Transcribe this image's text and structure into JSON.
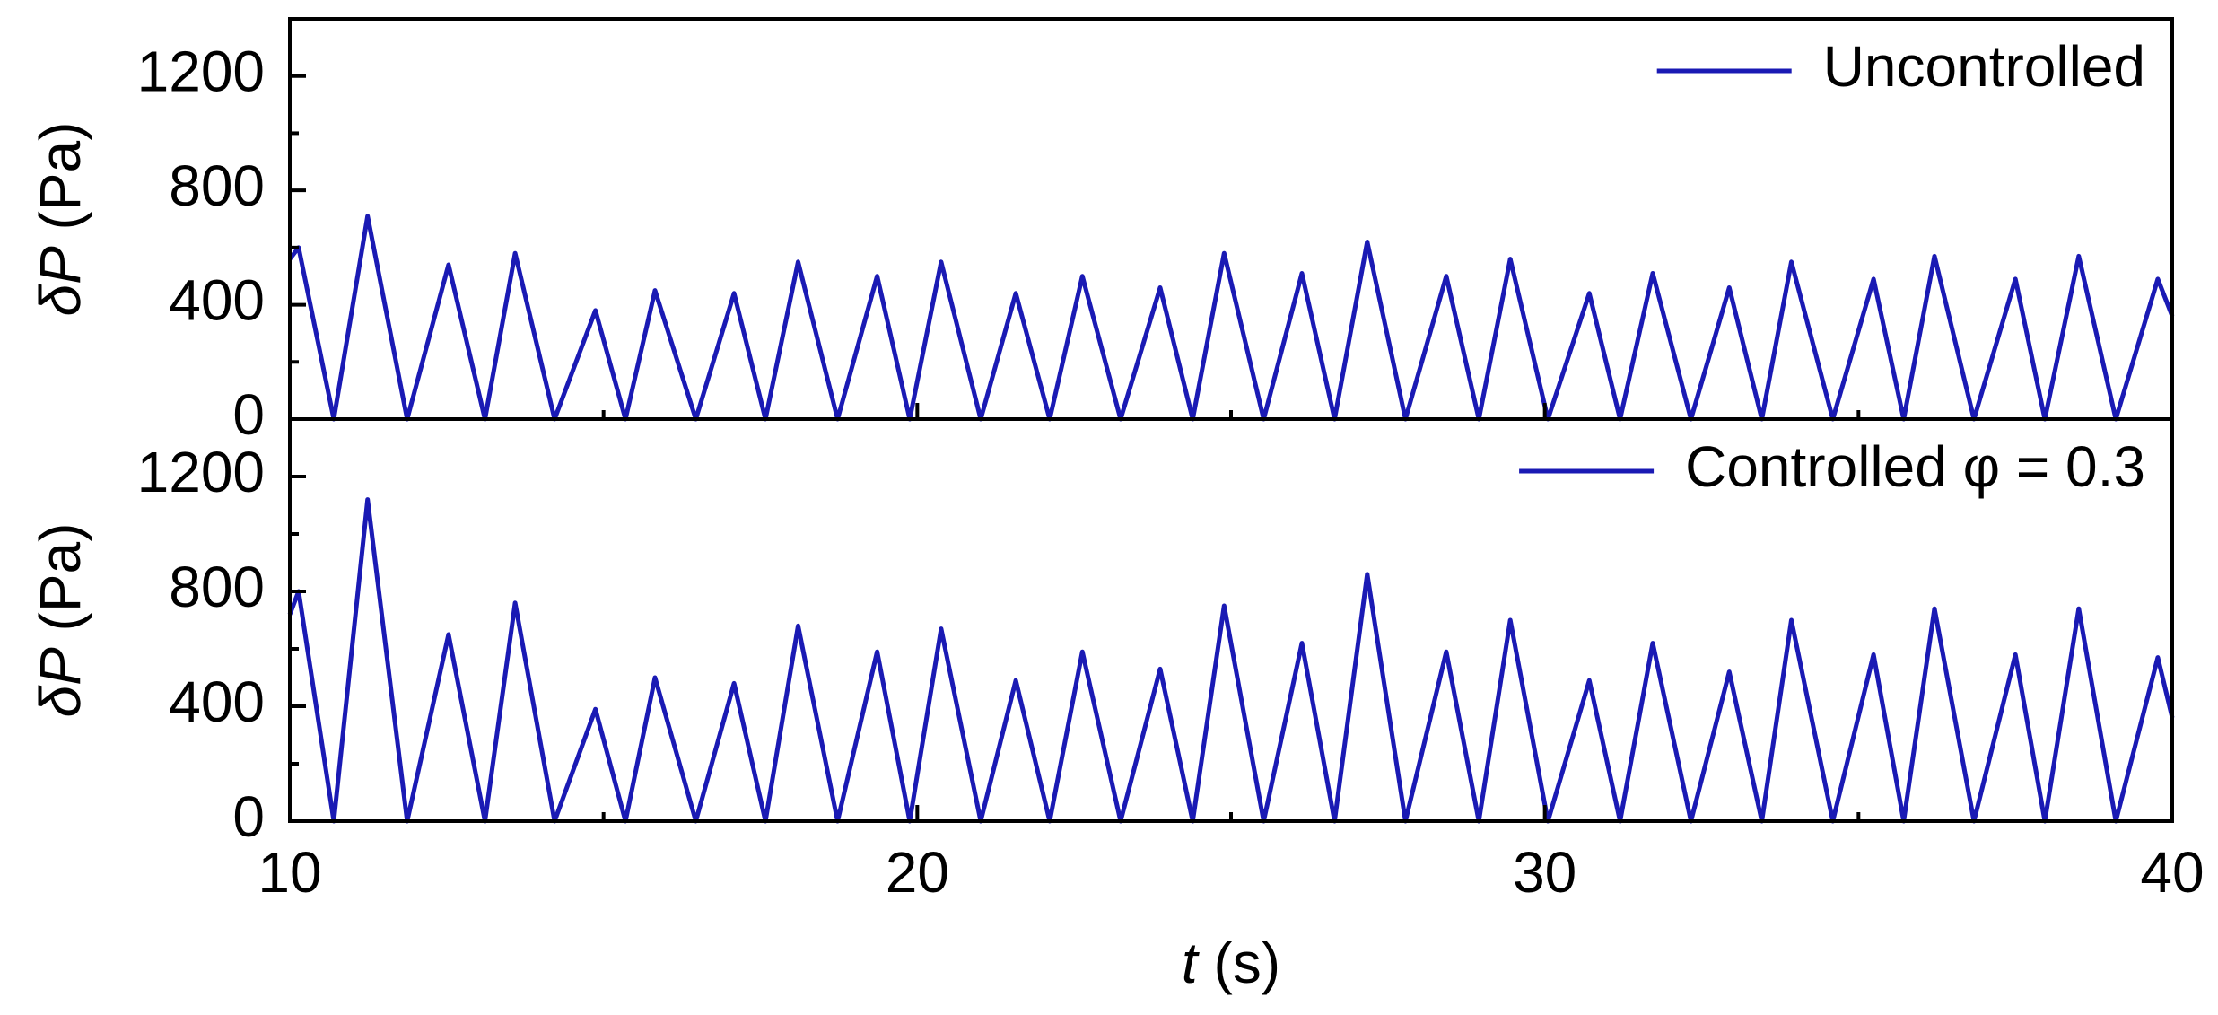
{
  "chart_data": [
    {
      "type": "line",
      "ylabel_symbol": "δP",
      "ylabel_unit": "(Pa)",
      "x": [
        10,
        10.14,
        10.7,
        11.24,
        11.87,
        12.53,
        13.11,
        13.59,
        14.22,
        14.87,
        15.35,
        15.82,
        16.47,
        17.08,
        17.58,
        18.1,
        18.73,
        19.36,
        19.88,
        20.38,
        21.01,
        21.57,
        22.11,
        22.63,
        23.24,
        23.87,
        24.39,
        24.89,
        25.52,
        26.13,
        26.65,
        27.17,
        27.78,
        28.43,
        28.95,
        29.45,
        30.05,
        30.71,
        31.2,
        31.72,
        32.33,
        32.94,
        33.46,
        33.93,
        34.59,
        35.24,
        35.72,
        36.21,
        36.84,
        37.5,
        37.97,
        38.51,
        39.1,
        39.77,
        40
      ],
      "series": [
        {
          "name": "Uncontrolled",
          "color": "#1a1ab4",
          "values": [
            560,
            600,
            0,
            710,
            0,
            540,
            0,
            580,
            0,
            380,
            0,
            450,
            0,
            440,
            0,
            550,
            0,
            500,
            0,
            550,
            0,
            440,
            0,
            500,
            0,
            460,
            0,
            580,
            0,
            510,
            0,
            620,
            0,
            500,
            0,
            560,
            0,
            440,
            0,
            510,
            0,
            460,
            0,
            550,
            0,
            490,
            0,
            570,
            0,
            490,
            0,
            570,
            0,
            490,
            360
          ]
        }
      ],
      "xlim": [
        10,
        40
      ],
      "xticks": [
        10,
        20,
        30,
        40
      ],
      "xminorticks": [
        15,
        25,
        35
      ],
      "show_xtick_labels": false,
      "ylim": [
        0,
        1400
      ],
      "yticks": [
        0,
        400,
        800,
        1200
      ],
      "yminorticks": [
        200,
        600,
        1000
      ],
      "legend": "upper right"
    },
    {
      "type": "line",
      "ylabel_symbol": "δP",
      "ylabel_unit": "(Pa)",
      "xlabel_symbol": "t",
      "xlabel_unit": "(s)",
      "x": [
        10,
        10.14,
        10.7,
        11.24,
        11.87,
        12.53,
        13.11,
        13.59,
        14.22,
        14.87,
        15.35,
        15.82,
        16.47,
        17.08,
        17.58,
        18.1,
        18.73,
        19.36,
        19.88,
        20.38,
        21.01,
        21.57,
        22.11,
        22.63,
        23.24,
        23.87,
        24.39,
        24.89,
        25.52,
        26.13,
        26.65,
        27.17,
        27.78,
        28.43,
        28.95,
        29.45,
        30.05,
        30.71,
        31.2,
        31.72,
        32.33,
        32.94,
        33.46,
        33.93,
        34.59,
        35.24,
        35.72,
        36.21,
        36.84,
        37.5,
        37.97,
        38.51,
        39.1,
        39.77,
        40
      ],
      "series": [
        {
          "name": "Controlled φ = 0.3",
          "color": "#1a1ab4",
          "values": [
            720,
            800,
            0,
            1120,
            0,
            650,
            0,
            760,
            0,
            390,
            0,
            500,
            0,
            480,
            0,
            680,
            0,
            590,
            0,
            670,
            0,
            490,
            0,
            590,
            0,
            530,
            0,
            750,
            0,
            620,
            0,
            860,
            0,
            590,
            0,
            700,
            0,
            490,
            0,
            620,
            0,
            520,
            0,
            700,
            0,
            580,
            0,
            740,
            0,
            580,
            0,
            740,
            0,
            570,
            360
          ]
        }
      ],
      "xlim": [
        10,
        40
      ],
      "xticks": [
        10,
        20,
        30,
        40
      ],
      "xminorticks": [
        15,
        25,
        35
      ],
      "show_xtick_labels": true,
      "ylim": [
        0,
        1400
      ],
      "yticks": [
        0,
        400,
        800,
        1200
      ],
      "yminorticks": [
        200,
        600,
        1000
      ],
      "legend": "upper right"
    }
  ]
}
